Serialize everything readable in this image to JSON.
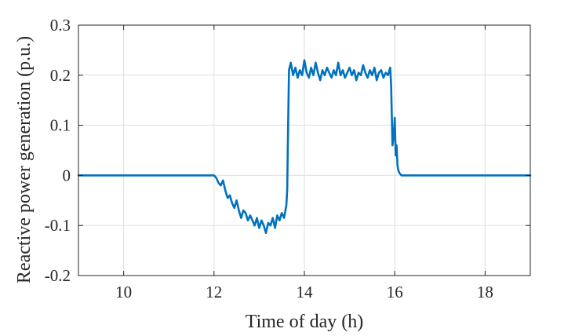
{
  "chart_data": {
    "type": "line",
    "title": "",
    "xlabel": "Time of day (h)",
    "ylabel": "Reactive power generation (p.u.)",
    "xlim": [
      9,
      19
    ],
    "ylim": [
      -0.2,
      0.3
    ],
    "xticks": [
      10,
      12,
      14,
      16,
      18
    ],
    "xtick_labels": [
      "10",
      "12",
      "14",
      "16",
      "18"
    ],
    "yticks": [
      -0.2,
      -0.1,
      0,
      0.1,
      0.2,
      0.3
    ],
    "ytick_labels": [
      "-0.2",
      "-0.1",
      "0",
      "0.1",
      "0.2",
      "0.3"
    ],
    "grid": true,
    "legend": "none",
    "series_color": "#0072BD",
    "series": [
      {
        "x": [
          9.0,
          11.9,
          12.0,
          12.05,
          12.1,
          12.15,
          12.2,
          12.25,
          12.3,
          12.35,
          12.4,
          12.45,
          12.5,
          12.55,
          12.6,
          12.65,
          12.7,
          12.75,
          12.8,
          12.85,
          12.9,
          12.95,
          13.0,
          13.05,
          13.1,
          13.15,
          13.2,
          13.25,
          13.3,
          13.35,
          13.4,
          13.45,
          13.5,
          13.55,
          13.6,
          13.62,
          13.64,
          13.66,
          13.7,
          13.75,
          13.8,
          13.85,
          13.9,
          13.95,
          14.0,
          14.05,
          14.1,
          14.15,
          14.2,
          14.25,
          14.3,
          14.35,
          14.4,
          14.45,
          14.5,
          14.55,
          14.6,
          14.65,
          14.7,
          14.75,
          14.8,
          14.85,
          14.9,
          14.95,
          15.0,
          15.05,
          15.1,
          15.15,
          15.2,
          15.25,
          15.3,
          15.35,
          15.4,
          15.45,
          15.5,
          15.55,
          15.6,
          15.65,
          15.7,
          15.75,
          15.8,
          15.85,
          15.9,
          15.92,
          15.95,
          15.98,
          16.0,
          16.02,
          16.04,
          16.06,
          16.08,
          16.1,
          16.15,
          19.0
        ],
        "y": [
          0,
          0,
          0,
          -0.005,
          -0.015,
          -0.02,
          -0.01,
          -0.03,
          -0.045,
          -0.04,
          -0.055,
          -0.065,
          -0.05,
          -0.07,
          -0.085,
          -0.07,
          -0.075,
          -0.09,
          -0.08,
          -0.09,
          -0.1,
          -0.085,
          -0.105,
          -0.09,
          -0.1,
          -0.115,
          -0.095,
          -0.1,
          -0.085,
          -0.105,
          -0.08,
          -0.09,
          -0.075,
          -0.085,
          -0.06,
          -0.03,
          0.1,
          0.21,
          0.225,
          0.2,
          0.215,
          0.195,
          0.21,
          0.2,
          0.23,
          0.205,
          0.195,
          0.215,
          0.2,
          0.225,
          0.205,
          0.19,
          0.21,
          0.2,
          0.215,
          0.205,
          0.195,
          0.21,
          0.2,
          0.225,
          0.2,
          0.21,
          0.195,
          0.205,
          0.215,
          0.2,
          0.21,
          0.19,
          0.205,
          0.2,
          0.22,
          0.205,
          0.195,
          0.21,
          0.2,
          0.215,
          0.19,
          0.205,
          0.21,
          0.195,
          0.205,
          0.2,
          0.215,
          0.18,
          0.06,
          0.08,
          0.115,
          0.04,
          0.06,
          0.02,
          0.01,
          0.005,
          0,
          0
        ]
      }
    ]
  }
}
